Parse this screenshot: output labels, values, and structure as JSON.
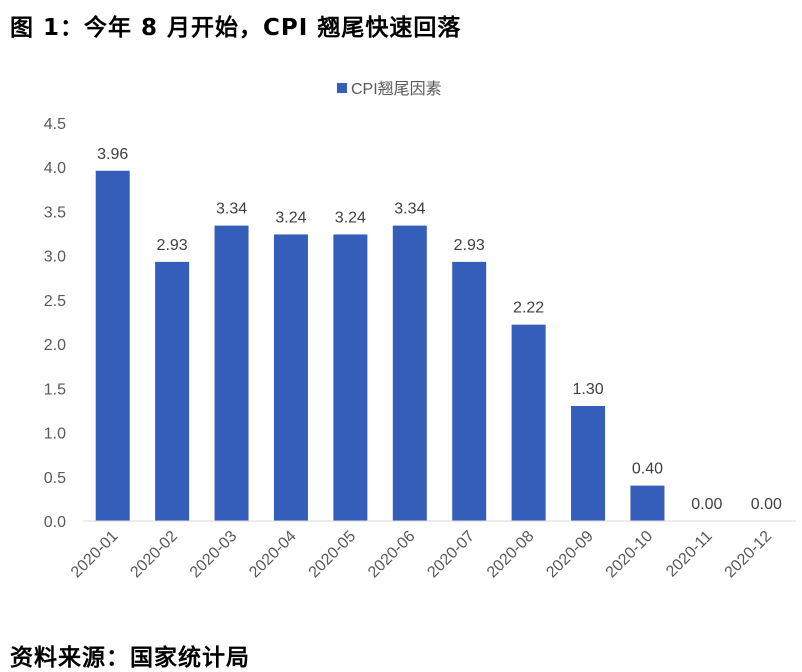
{
  "title": "图 1：今年 8 月开始，CPI 翘尾快速回落",
  "source": "资料来源：国家统计局",
  "chart_data": {
    "type": "bar",
    "title": "图 1：今年 8 月开始，CPI 翘尾快速回落",
    "categories": [
      "2020-01",
      "2020-02",
      "2020-03",
      "2020-04",
      "2020-05",
      "2020-06",
      "2020-07",
      "2020-08",
      "2020-09",
      "2020-10",
      "2020-11",
      "2020-12"
    ],
    "series": [
      {
        "name": "CPI翘尾因素",
        "values": [
          3.96,
          2.93,
          3.34,
          3.24,
          3.24,
          3.34,
          2.93,
          2.22,
          1.3,
          0.4,
          0.0,
          0.0
        ],
        "color": "#355EBA"
      }
    ],
    "value_labels": [
      "3.96",
      "2.93",
      "3.34",
      "3.24",
      "3.24",
      "3.34",
      "2.93",
      "2.22",
      "1.30",
      "0.40",
      "0.00",
      "0.00"
    ],
    "yticks": [
      "0.0",
      "0.5",
      "1.0",
      "1.5",
      "2.0",
      "2.5",
      "3.0",
      "3.5",
      "4.0",
      "4.5"
    ],
    "ylim": [
      0,
      4.5
    ],
    "xlabel": "",
    "ylabel": "",
    "legend": "top-center",
    "grid": false
  }
}
